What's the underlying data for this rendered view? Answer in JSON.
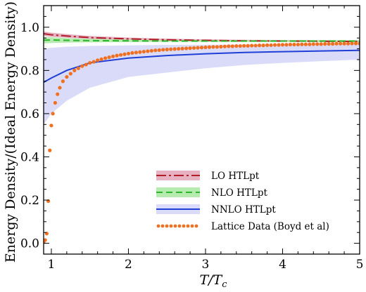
{
  "chart_data": {
    "type": "line",
    "xlabel": "T/T_c",
    "ylabel": "Energy Density/(Ideal Energy Density)",
    "xlim": [
      0.9,
      5.0
    ],
    "ylim": [
      -0.05,
      1.1
    ],
    "x_ticks": [
      "1",
      "2",
      "3",
      "4",
      "5"
    ],
    "y_ticks": [
      "0.0",
      "0.2",
      "0.4",
      "0.6",
      "0.8",
      "1.0"
    ],
    "legend_position": "lower-right",
    "series": [
      {
        "name": "LO HTLpt",
        "style": "dash-dot",
        "color": "#b01e2a",
        "band_color": "#e2a4b6",
        "x": [
          0.9,
          1.0,
          1.25,
          1.5,
          2.0,
          2.5,
          3.0,
          3.5,
          4.0,
          4.5,
          5.0
        ],
        "y": [
          0.97,
          0.965,
          0.958,
          0.952,
          0.946,
          0.942,
          0.939,
          0.937,
          0.936,
          0.935,
          0.934
        ],
        "lower": [
          0.96,
          0.955,
          0.95,
          0.946,
          0.941,
          0.938,
          0.936,
          0.934,
          0.933,
          0.932,
          0.931
        ],
        "upper": [
          0.98,
          0.975,
          0.967,
          0.96,
          0.952,
          0.947,
          0.944,
          0.942,
          0.941,
          0.94,
          0.939
        ]
      },
      {
        "name": "NLO HTLpt",
        "style": "dashed",
        "color": "#2db52d",
        "band_color": "#a8e7a0",
        "x": [
          0.9,
          1.0,
          1.25,
          1.5,
          2.0,
          2.5,
          3.0,
          3.5,
          4.0,
          4.5,
          5.0
        ],
        "y": [
          0.94,
          0.941,
          0.939,
          0.938,
          0.937,
          0.936,
          0.936,
          0.936,
          0.936,
          0.936,
          0.936
        ],
        "lower": [
          0.925,
          0.927,
          0.929,
          0.93,
          0.931,
          0.932,
          0.932,
          0.932,
          0.932,
          0.932,
          0.932
        ],
        "upper": [
          0.955,
          0.953,
          0.949,
          0.946,
          0.943,
          0.941,
          0.94,
          0.94,
          0.94,
          0.94,
          0.94
        ]
      },
      {
        "name": "NNLO HTLpt",
        "style": "solid",
        "color": "#1f3fd6",
        "band_color": "#d3d5f7",
        "x": [
          0.9,
          1.0,
          1.2,
          1.5,
          2.0,
          2.5,
          3.0,
          3.5,
          4.0,
          4.5,
          5.0
        ],
        "y": [
          0.745,
          0.765,
          0.8,
          0.835,
          0.857,
          0.869,
          0.877,
          0.883,
          0.887,
          0.89,
          0.893
        ],
        "lower": [
          0.55,
          0.6,
          0.66,
          0.72,
          0.77,
          0.79,
          0.81,
          0.825,
          0.835,
          0.843,
          0.85
        ],
        "upper": [
          0.9,
          0.905,
          0.91,
          0.913,
          0.916,
          0.918,
          0.919,
          0.92,
          0.921,
          0.922,
          0.922
        ]
      },
      {
        "name": "Lattice Data (Boyd et al)",
        "style": "dots",
        "color": "#f07020",
        "x": [
          0.9,
          0.92,
          0.94,
          0.96,
          0.98,
          1.0,
          1.02,
          1.05,
          1.08,
          1.11,
          1.15,
          1.2,
          1.25,
          1.3,
          1.35,
          1.4,
          1.45,
          1.5,
          1.55,
          1.6,
          1.65,
          1.7,
          1.75,
          1.8,
          1.85,
          1.9,
          1.95,
          2.0,
          2.05,
          2.1,
          2.15,
          2.2,
          2.25,
          2.3,
          2.35,
          2.4,
          2.45,
          2.5,
          2.55,
          2.6,
          2.65,
          2.7,
          2.75,
          2.8,
          2.85,
          2.9,
          2.95,
          3.0,
          3.05,
          3.1,
          3.15,
          3.2,
          3.25,
          3.3,
          3.35,
          3.4,
          3.45,
          3.5,
          3.55,
          3.6,
          3.65,
          3.7,
          3.75,
          3.8,
          3.85,
          3.9,
          3.95,
          4.0,
          4.05,
          4.1,
          4.15,
          4.2,
          4.25,
          4.3,
          4.35,
          4.4,
          4.45,
          4.5,
          4.55,
          4.6,
          4.65,
          4.7,
          4.75,
          4.8,
          4.85,
          4.9,
          4.95,
          5.0
        ],
        "y": [
          0.005,
          0.015,
          0.045,
          0.195,
          0.43,
          0.545,
          0.6,
          0.65,
          0.69,
          0.72,
          0.75,
          0.77,
          0.785,
          0.8,
          0.81,
          0.82,
          0.827,
          0.835,
          0.84,
          0.847,
          0.852,
          0.857,
          0.861,
          0.865,
          0.869,
          0.872,
          0.875,
          0.878,
          0.881,
          0.883,
          0.885,
          0.887,
          0.889,
          0.891,
          0.893,
          0.894,
          0.896,
          0.897,
          0.898,
          0.899,
          0.9,
          0.901,
          0.902,
          0.903,
          0.904,
          0.905,
          0.906,
          0.907,
          0.908,
          0.909,
          0.909,
          0.91,
          0.911,
          0.912,
          0.912,
          0.913,
          0.913,
          0.914,
          0.914,
          0.915,
          0.915,
          0.916,
          0.916,
          0.917,
          0.917,
          0.918,
          0.918,
          0.919,
          0.919,
          0.92,
          0.92,
          0.92,
          0.921,
          0.921,
          0.921,
          0.922,
          0.922,
          0.922,
          0.923,
          0.923,
          0.923,
          0.924,
          0.924,
          0.924,
          0.924,
          0.925,
          0.925,
          0.925
        ]
      }
    ]
  }
}
